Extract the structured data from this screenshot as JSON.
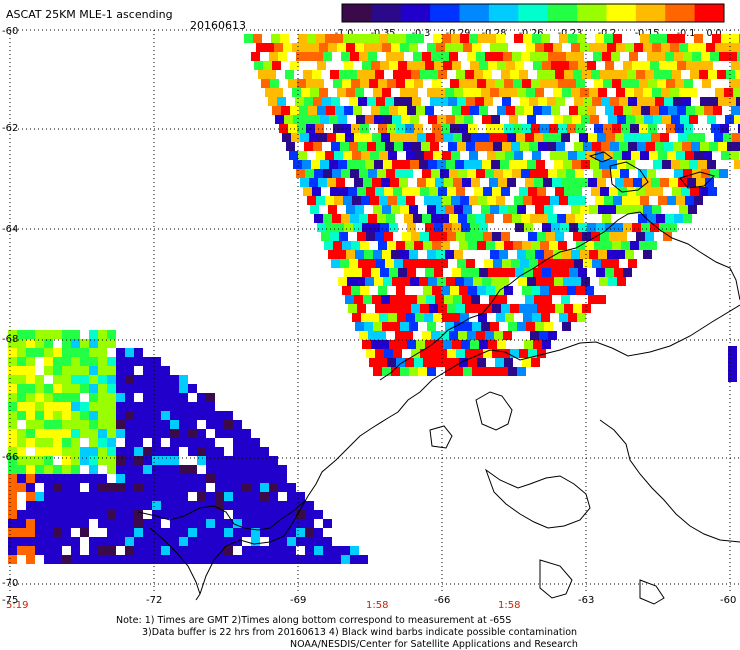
{
  "header": {
    "title": "ASCAT 25KM MLE-1 ascending",
    "date": "20160613"
  },
  "colorbar": {
    "ticks": [
      "-1.0",
      "-0.35",
      "-0.3",
      "-0.29",
      "-0.28",
      "-0.26",
      "-0.23",
      "-0.2",
      "-0.15",
      "-0.1",
      "0.0"
    ],
    "colors": [
      "#3a0a4a",
      "#2a0a8a",
      "#2200cc",
      "#0033ff",
      "#0088ff",
      "#00ccff",
      "#00ffcc",
      "#22ff44",
      "#99ff00",
      "#ffff00",
      "#ffbb00",
      "#ff6600",
      "#ff0000"
    ]
  },
  "axes": {
    "lat_labels": [
      "-60",
      "-62",
      "-64",
      "-66",
      "-68",
      "-70"
    ],
    "lon_labels": [
      "-75",
      "-72",
      "-69",
      "-66",
      "-63",
      "-60"
    ]
  },
  "time_labels": [
    "5:19",
    "1:58",
    "1:58"
  ],
  "notes": {
    "line1": "Note: 1) Times are GMT 2)Times along bottom correspond to measurement at -65S",
    "line2": "3)Data buffer is 22 hrs from 20160613 4) Black wind barbs indicate possible contamination",
    "line3": "NOAA/NESDIS/Center for Satellite Applications and Research"
  },
  "colors": {
    "grid": "#000000",
    "coast": "#000000",
    "time_label": "#cc2200"
  }
}
